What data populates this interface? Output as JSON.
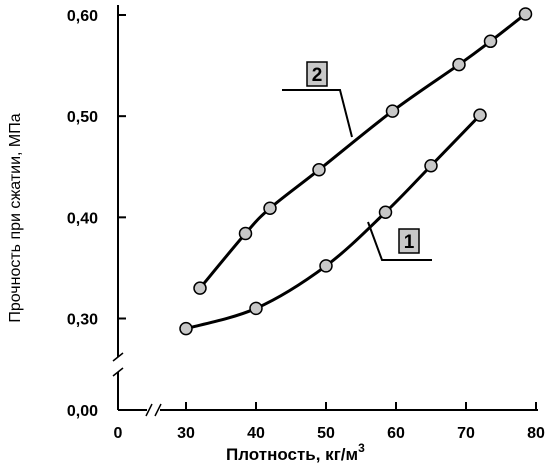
{
  "chart_data": {
    "type": "line",
    "xlabel": "Плотность, кг/м",
    "xlabel_sup": "3",
    "ylabel": "Прочность при сжатии, МПа",
    "x_ticks": [
      "0",
      "30",
      "40",
      "50",
      "60",
      "70",
      "80"
    ],
    "y_ticks": [
      "0,00",
      "0,30",
      "0,40",
      "0,50",
      "0,60"
    ],
    "x_tick_values": [
      30,
      40,
      50,
      60,
      70,
      80
    ],
    "y_tick_values": [
      0.3,
      0.4,
      0.5,
      0.6
    ],
    "xlim": [
      20,
      80
    ],
    "ylim": [
      0.2,
      0.6
    ],
    "x_axis_break": true,
    "y_axis_break": true,
    "grid": false,
    "series": [
      {
        "name": "1",
        "color": "#000000",
        "marker_color": "#c8c8c8",
        "points": [
          [
            30,
            0.29
          ],
          [
            40,
            0.31
          ],
          [
            50,
            0.352
          ],
          [
            58.5,
            0.405
          ],
          [
            65,
            0.451
          ],
          [
            72,
            0.501
          ]
        ]
      },
      {
        "name": "2",
        "color": "#000000",
        "marker_color": "#c8c8c8",
        "points": [
          [
            32,
            0.33
          ],
          [
            38.5,
            0.384
          ],
          [
            42,
            0.409
          ],
          [
            49,
            0.447
          ],
          [
            59.5,
            0.505
          ],
          [
            69,
            0.551
          ],
          [
            73.5,
            0.574
          ],
          [
            78.5,
            0.601
          ]
        ]
      }
    ]
  }
}
